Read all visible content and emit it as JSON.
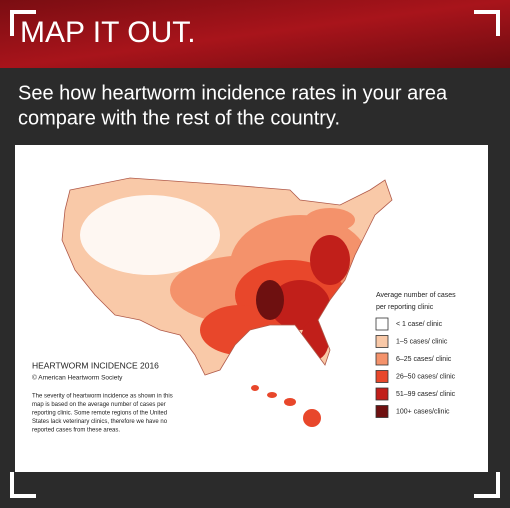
{
  "header": {
    "title": "MAP IT OUT."
  },
  "subtitle": [
    "See how heartworm incidence rates in your area",
    "compare with the rest of the country."
  ],
  "map": {
    "title": "HEARTWORM INCIDENCE 2016",
    "credit": "© American Heartworm Society",
    "description": [
      "The severity of heartworm incidence as shown in this",
      "map is based on the average number of cases per",
      "reporting clinic.  Some remote regions of the United",
      "States lack veterinary clinics, therefore we have no",
      "reported cases from these areas."
    ],
    "legend": {
      "title": [
        "Average number of cases",
        "per reporting clinic"
      ],
      "items": [
        {
          "label": "< 1 case/ clinic",
          "color": "#ffffff"
        },
        {
          "label": "1–5 cases/ clinic",
          "color": "#f9c9a8"
        },
        {
          "label": "6–25 cases/ clinic",
          "color": "#f4926b"
        },
        {
          "label": "26–50  cases/ clinic",
          "color": "#e8472b"
        },
        {
          "label": "51–99 cases/ clinic",
          "color": "#c11f1a"
        },
        {
          "label": "100+ cases/clinic",
          "color": "#6e1010"
        }
      ]
    }
  }
}
